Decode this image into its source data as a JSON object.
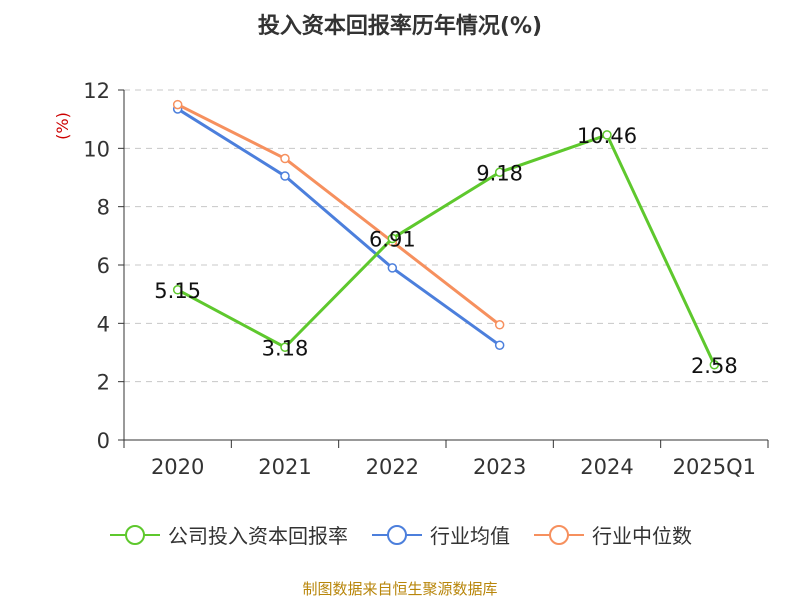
{
  "title": "投入资本回报率历年情况(%)",
  "source": "制图数据来自恒生聚源数据库",
  "chart_data": {
    "type": "line",
    "categories": [
      "2020",
      "2021",
      "2022",
      "2023",
      "2024",
      "2025Q1"
    ],
    "ylabel": "(%)",
    "ylim": [
      0,
      12
    ],
    "yticks": [
      0,
      2,
      4,
      6,
      8,
      10,
      12
    ],
    "grid": true,
    "legend_position": "bottom",
    "series": [
      {
        "name": "公司投入资本回报率",
        "color": "#5ec82d",
        "values": [
          5.15,
          3.18,
          6.91,
          9.18,
          10.46,
          2.58
        ],
        "labels": [
          "5.15",
          "3.18",
          "6.91",
          "9.18",
          "10.46",
          "2.58"
        ]
      },
      {
        "name": "行业均值",
        "color": "#4c7fdc",
        "values": [
          11.35,
          9.05,
          5.9,
          3.25,
          null,
          null
        ]
      },
      {
        "name": "行业中位数",
        "color": "#f6905e",
        "values": [
          11.5,
          9.65,
          6.8,
          3.95,
          null,
          null
        ]
      }
    ]
  }
}
